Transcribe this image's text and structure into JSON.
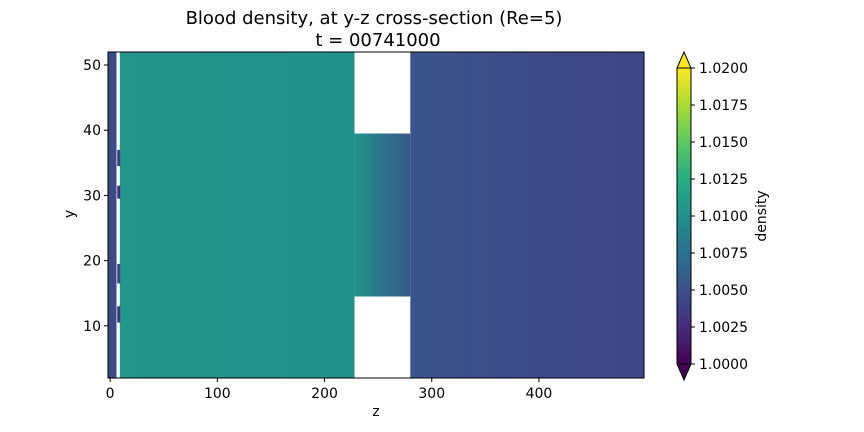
{
  "chart_data": {
    "type": "heatmap",
    "title": "Blood density, at y-z cross-section (Re=5)",
    "subtitle": "t = 00741000",
    "xlabel": "z",
    "ylabel": "y",
    "colorbar_label": "density",
    "colormap": "viridis",
    "colorbar_extend": "both",
    "xlim": [
      -2,
      498
    ],
    "ylim": [
      2,
      52
    ],
    "xticks": [
      0,
      100,
      200,
      300,
      400
    ],
    "yticks": [
      10,
      20,
      30,
      40,
      50
    ],
    "clim": [
      1.0,
      1.02
    ],
    "colorbar_ticks": [
      "1.0000",
      "1.0025",
      "1.0050",
      "1.0075",
      "1.0100",
      "1.0125",
      "1.0150",
      "1.0175",
      "1.0200"
    ],
    "regions": [
      {
        "z": [
          -2,
          6
        ],
        "y": [
          2,
          52
        ],
        "density": 1.0045
      },
      {
        "z": [
          6,
          9
        ],
        "y": [
          2,
          52
        ],
        "density": null
      },
      {
        "z": [
          9,
          228
        ],
        "y": [
          2,
          52
        ],
        "density": [
          1.0106,
          1.0102
        ]
      },
      {
        "z": [
          228,
          280
        ],
        "y": [
          14.5,
          39.5
        ],
        "density": [
          1.0102,
          1.0055
        ]
      },
      {
        "z": [
          228,
          280
        ],
        "y": [
          2,
          14.5
        ],
        "density": null
      },
      {
        "z": [
          228,
          280
        ],
        "y": [
          39.5,
          52
        ],
        "density": null
      },
      {
        "z": [
          280,
          498
        ],
        "y": [
          2,
          52
        ],
        "density": [
          1.0052,
          1.0042
        ]
      }
    ],
    "wall_marks": [
      {
        "z": 8,
        "y": [
          10.5,
          13
        ],
        "density": 1.003
      },
      {
        "z": 8,
        "y": [
          16.5,
          19.5
        ],
        "density": 1.004
      },
      {
        "z": 8,
        "y": [
          29.5,
          31.5
        ],
        "density": 1.0025
      },
      {
        "z": 8,
        "y": [
          34.5,
          37
        ],
        "density": 1.0035
      }
    ]
  }
}
